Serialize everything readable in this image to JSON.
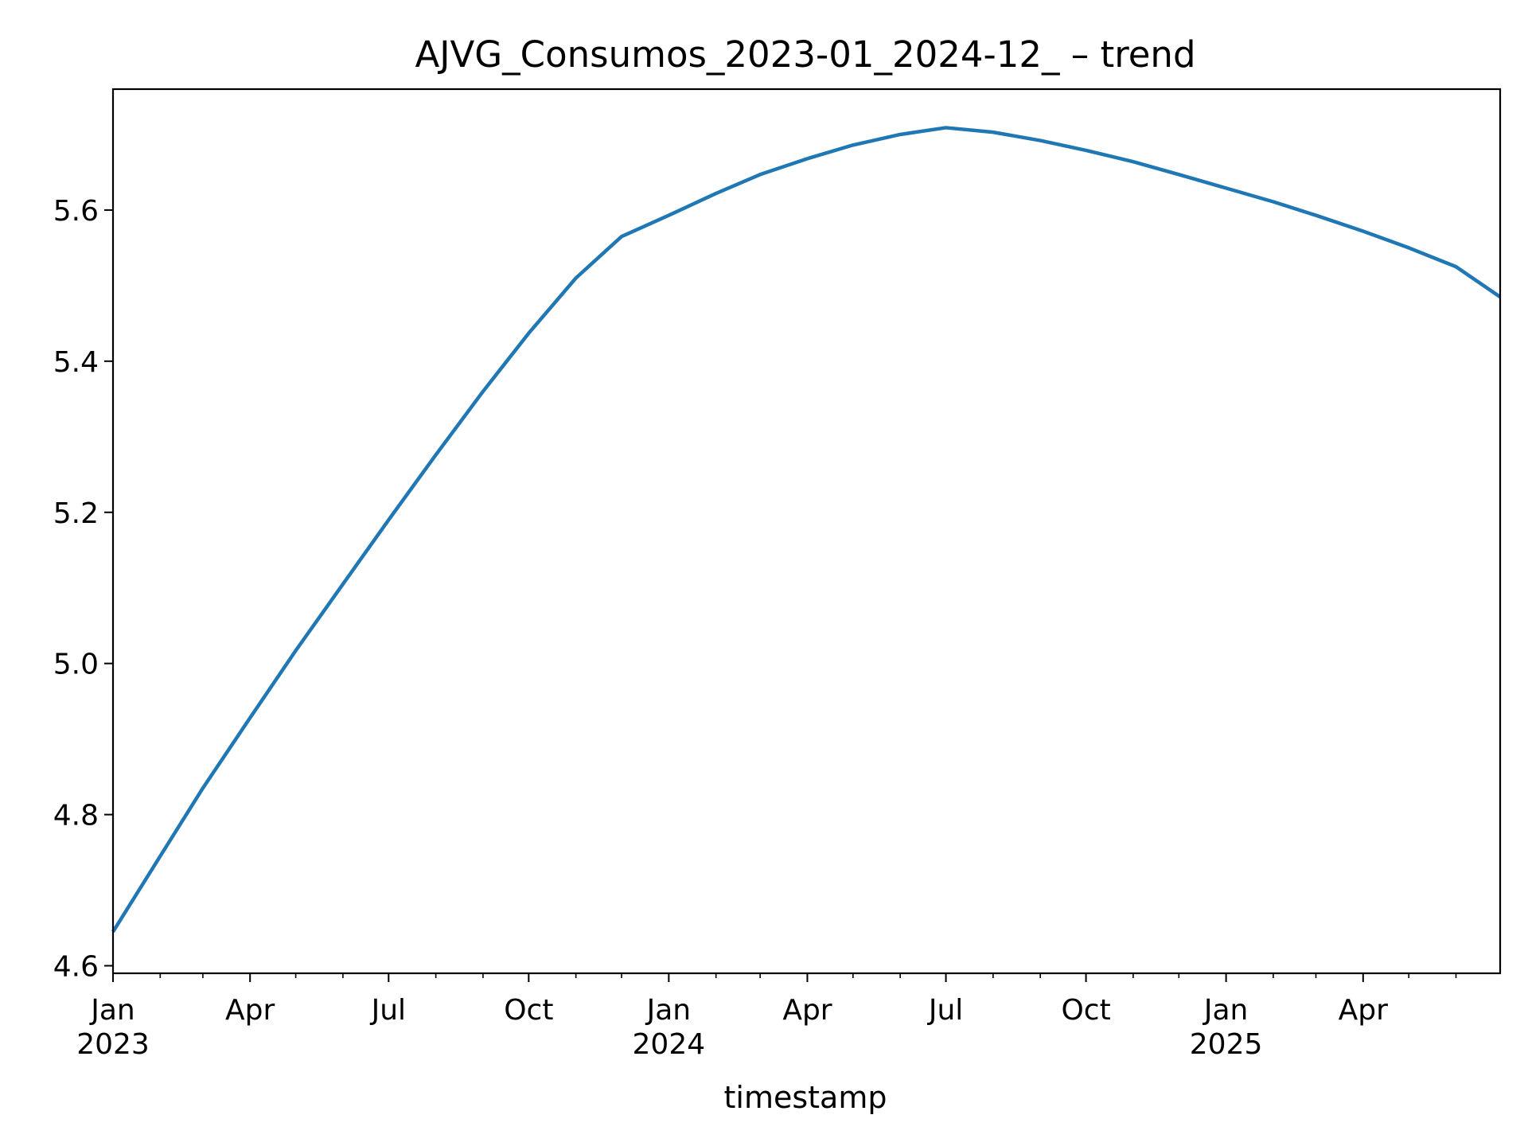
{
  "chart_data": {
    "type": "line",
    "title": "AJVG_Consumos_2023-01_2024-12_ – trend",
    "xlabel": "timestamp",
    "ylabel": "",
    "x_axis_type": "date",
    "xlim": [
      "2023-01-01",
      "2025-06-30"
    ],
    "ylim": [
      4.59,
      5.76
    ],
    "grid": false,
    "legend": "none",
    "series_color": "#1f77b4",
    "y_ticks": [
      {
        "value": 4.6,
        "label": "4.6"
      },
      {
        "value": 4.8,
        "label": "4.8"
      },
      {
        "value": 5.0,
        "label": "5.0"
      },
      {
        "value": 5.2,
        "label": "5.2"
      },
      {
        "value": 5.4,
        "label": "5.4"
      },
      {
        "value": 5.6,
        "label": "5.6"
      }
    ],
    "x_major_ticks": [
      {
        "date": "2023-01-01",
        "label": "Jan",
        "sublabel": "2023"
      },
      {
        "date": "2023-04-01",
        "label": "Apr",
        "sublabel": ""
      },
      {
        "date": "2023-07-01",
        "label": "Jul",
        "sublabel": ""
      },
      {
        "date": "2023-10-01",
        "label": "Oct",
        "sublabel": ""
      },
      {
        "date": "2024-01-01",
        "label": "Jan",
        "sublabel": "2024"
      },
      {
        "date": "2024-04-01",
        "label": "Apr",
        "sublabel": ""
      },
      {
        "date": "2024-07-01",
        "label": "Jul",
        "sublabel": ""
      },
      {
        "date": "2024-10-01",
        "label": "Oct",
        "sublabel": ""
      },
      {
        "date": "2025-01-01",
        "label": "Jan",
        "sublabel": "2025"
      },
      {
        "date": "2025-04-01",
        "label": "Apr",
        "sublabel": ""
      }
    ],
    "x_minor_ticks": [
      "2023-02-01",
      "2023-03-01",
      "2023-05-01",
      "2023-06-01",
      "2023-08-01",
      "2023-09-01",
      "2023-11-01",
      "2023-12-01",
      "2024-02-01",
      "2024-03-01",
      "2024-05-01",
      "2024-06-01",
      "2024-08-01",
      "2024-09-01",
      "2024-11-01",
      "2024-12-01",
      "2025-02-01",
      "2025-03-01",
      "2025-05-01",
      "2025-06-01"
    ],
    "series": [
      {
        "points": [
          {
            "x": "2023-01-01",
            "y": 4.645
          },
          {
            "x": "2023-02-01",
            "y": 4.745
          },
          {
            "x": "2023-03-01",
            "y": 4.835
          },
          {
            "x": "2023-04-01",
            "y": 4.928
          },
          {
            "x": "2023-05-01",
            "y": 5.017
          },
          {
            "x": "2023-06-01",
            "y": 5.105
          },
          {
            "x": "2023-07-01",
            "y": 5.19
          },
          {
            "x": "2023-08-01",
            "y": 5.276
          },
          {
            "x": "2023-09-01",
            "y": 5.36
          },
          {
            "x": "2023-10-01",
            "y": 5.437
          },
          {
            "x": "2023-11-01",
            "y": 5.51
          },
          {
            "x": "2023-12-01",
            "y": 5.565
          },
          {
            "x": "2024-01-01",
            "y": 5.593
          },
          {
            "x": "2024-02-01",
            "y": 5.622
          },
          {
            "x": "2024-03-01",
            "y": 5.647
          },
          {
            "x": "2024-04-01",
            "y": 5.668
          },
          {
            "x": "2024-05-01",
            "y": 5.686
          },
          {
            "x": "2024-06-01",
            "y": 5.7
          },
          {
            "x": "2024-07-01",
            "y": 5.709
          },
          {
            "x": "2024-08-01",
            "y": 5.703
          },
          {
            "x": "2024-09-01",
            "y": 5.692
          },
          {
            "x": "2024-10-01",
            "y": 5.679
          },
          {
            "x": "2024-11-01",
            "y": 5.664
          },
          {
            "x": "2024-12-01",
            "y": 5.647
          },
          {
            "x": "2025-01-01",
            "y": 5.629
          },
          {
            "x": "2025-02-01",
            "y": 5.611
          },
          {
            "x": "2025-03-01",
            "y": 5.593
          },
          {
            "x": "2025-04-01",
            "y": 5.572
          },
          {
            "x": "2025-05-01",
            "y": 5.55
          },
          {
            "x": "2025-06-01",
            "y": 5.525
          },
          {
            "x": "2025-06-30",
            "y": 5.485
          }
        ]
      }
    ]
  }
}
